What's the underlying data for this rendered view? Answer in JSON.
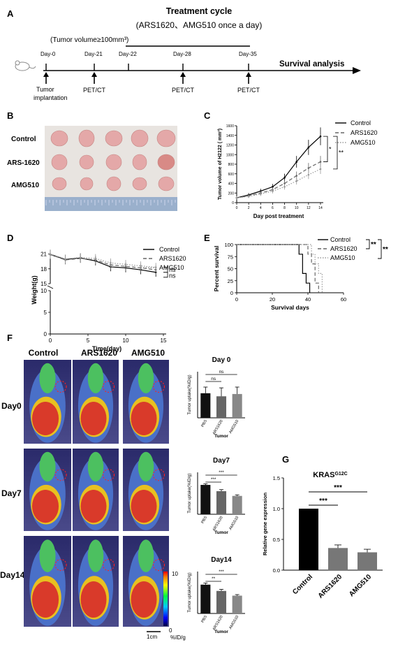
{
  "panel_labels": {
    "a": "A",
    "b": "B",
    "c": "C",
    "d": "D",
    "e": "E",
    "f": "F",
    "g": "G"
  },
  "timeline": {
    "title": "Treatment cycle",
    "subtitle": "(ARS1620、AMG510  once a day)",
    "tumor_volume": "(Tumor volume≥100mm³)",
    "days": [
      "Day-0",
      "Day-21",
      "Day-22",
      "Day-28",
      "Day-35"
    ],
    "survival": "Survival  analysis",
    "implant_1": "Tumor",
    "implant_2": "implantation",
    "pet": "PET/CT"
  },
  "photo": {
    "rows": [
      "Control",
      "ARS-1620",
      "AMG510"
    ]
  },
  "pet_images": {
    "columns": [
      "Control",
      "ARS1620",
      "AMG510"
    ],
    "rows": [
      "Day0",
      "Day7",
      "Day14"
    ],
    "scale_max": "10",
    "scale_min": "0",
    "scale_unit": "%ID/g",
    "scale_bar": "1cm"
  },
  "chart_data": [
    {
      "id": "C",
      "type": "line",
      "xlabel": "Day post treatment",
      "ylabel": "Tumor volume of H2122 ( mm³)",
      "xlim": [
        0,
        14
      ],
      "ylim": [
        0,
        1600
      ],
      "xticks": [
        0,
        2,
        4,
        6,
        8,
        10,
        12,
        14
      ],
      "yticks": [
        0,
        200,
        400,
        600,
        800,
        1000,
        1200,
        1400,
        1600
      ],
      "x": [
        0,
        2,
        4,
        6,
        8,
        10,
        12,
        14
      ],
      "series": [
        {
          "name": "Control",
          "values": [
            100,
            160,
            240,
            330,
            520,
            850,
            1150,
            1380
          ]
        },
        {
          "name": "ARS1620",
          "values": [
            100,
            140,
            200,
            270,
            400,
            560,
            720,
            850
          ]
        },
        {
          "name": "AMG510",
          "values": [
            100,
            130,
            180,
            240,
            330,
            450,
            580,
            700
          ]
        }
      ],
      "significance": [
        "*",
        "**"
      ],
      "legend": "top-right"
    },
    {
      "id": "D",
      "type": "line",
      "xlabel": "Time(day)",
      "ylabel": "Weight(g)",
      "xlim": [
        0,
        15
      ],
      "xticks": [
        0,
        5,
        10,
        15
      ],
      "yticks": [
        0,
        5,
        10,
        15,
        18,
        21
      ],
      "y_axis_break": [
        10,
        15
      ],
      "x": [
        0,
        2,
        4,
        6,
        8,
        10,
        12,
        14
      ],
      "series": [
        {
          "name": "Control",
          "values": [
            20.9,
            19.9,
            20.2,
            19.6,
            18.4,
            18.2,
            17.8,
            17.3
          ]
        },
        {
          "name": "ARS1620",
          "values": [
            20.9,
            19.8,
            20.1,
            19.8,
            18.8,
            18.5,
            18.2,
            17.8
          ]
        },
        {
          "name": "AMG510",
          "values": [
            21.0,
            20.0,
            20.3,
            20.1,
            19.2,
            18.9,
            18.6,
            18.3
          ]
        }
      ],
      "significance": [
        "ns",
        "ns"
      ],
      "legend": "top-right"
    },
    {
      "id": "E",
      "type": "line",
      "xlabel": "Survival days",
      "ylabel": "Percent survival",
      "xlim": [
        0,
        60
      ],
      "ylim": [
        0,
        100
      ],
      "xticks": [
        0,
        20,
        40,
        60
      ],
      "yticks": [
        0,
        25,
        50,
        75,
        100
      ],
      "series": [
        {
          "name": "Control",
          "steps": [
            [
              0,
              100
            ],
            [
              35,
              100
            ],
            [
              35,
              80
            ],
            [
              37,
              80
            ],
            [
              37,
              40
            ],
            [
              39,
              40
            ],
            [
              39,
              20
            ],
            [
              41,
              20
            ],
            [
              41,
              0
            ]
          ]
        },
        {
          "name": "ARS1620",
          "steps": [
            [
              0,
              100
            ],
            [
              40,
              100
            ],
            [
              40,
              80
            ],
            [
              42,
              80
            ],
            [
              42,
              60
            ],
            [
              44,
              60
            ],
            [
              44,
              20
            ],
            [
              46,
              20
            ],
            [
              46,
              0
            ]
          ]
        },
        {
          "name": "AMG510",
          "steps": [
            [
              0,
              100
            ],
            [
              42,
              100
            ],
            [
              42,
              80
            ],
            [
              44,
              80
            ],
            [
              44,
              60
            ],
            [
              46,
              60
            ],
            [
              46,
              40
            ],
            [
              48,
              40
            ],
            [
              48,
              0
            ]
          ]
        }
      ],
      "significance": [
        "**",
        "**"
      ],
      "legend": "top-right"
    },
    {
      "id": "F-Day0",
      "type": "bar",
      "title": "Day 0",
      "xlabel": "Tumor",
      "ylabel": "Tumor uptake(%ID/g)",
      "categories": [
        "PBS",
        "ARS1620",
        "AMG510"
      ],
      "values": [
        3.2,
        2.8,
        3.1
      ],
      "errors": [
        0.8,
        1.1,
        0.9
      ],
      "ylim": [
        0,
        6
      ],
      "significance": [
        "ns",
        "ns"
      ]
    },
    {
      "id": "F-Day7",
      "type": "bar",
      "title": "Day7",
      "xlabel": "Tumor",
      "ylabel": "Tumor uptake(%ID/g)",
      "categories": [
        "PBS",
        "ARS1620",
        "AMG510"
      ],
      "values": [
        5.6,
        4.4,
        3.5
      ],
      "errors": [
        0.2,
        0.3,
        0.2
      ],
      "ylim": [
        0,
        8
      ],
      "significance": [
        "***",
        "***"
      ]
    },
    {
      "id": "F-Day14",
      "type": "bar",
      "title": "Day14",
      "xlabel": "Tumor",
      "ylabel": "Tumor uptake(%ID/g)",
      "categories": [
        "PBS",
        "ARS1620",
        "AMG510"
      ],
      "values": [
        5.5,
        4.3,
        3.4
      ],
      "errors": [
        0.3,
        0.3,
        0.2
      ],
      "ylim": [
        0,
        8
      ],
      "significance": [
        "**",
        "***"
      ]
    },
    {
      "id": "G",
      "type": "bar",
      "title": "KRAS",
      "title_sup": "G12C",
      "ylabel": "Relative gene expression",
      "categories": [
        "Control",
        "ARS1620",
        "AMG510"
      ],
      "values": [
        1.0,
        0.36,
        0.29
      ],
      "errors": [
        0,
        0.05,
        0.05
      ],
      "ylim": [
        0,
        1.5
      ],
      "yticks": [
        "0.0",
        "0.5",
        "1.0",
        "1.5"
      ],
      "significance": [
        "***",
        "***"
      ]
    }
  ],
  "colors": {
    "control": "#000000",
    "ars1620": "#666666",
    "amg510": "#999999",
    "tumor_red": "#d93a2a"
  }
}
